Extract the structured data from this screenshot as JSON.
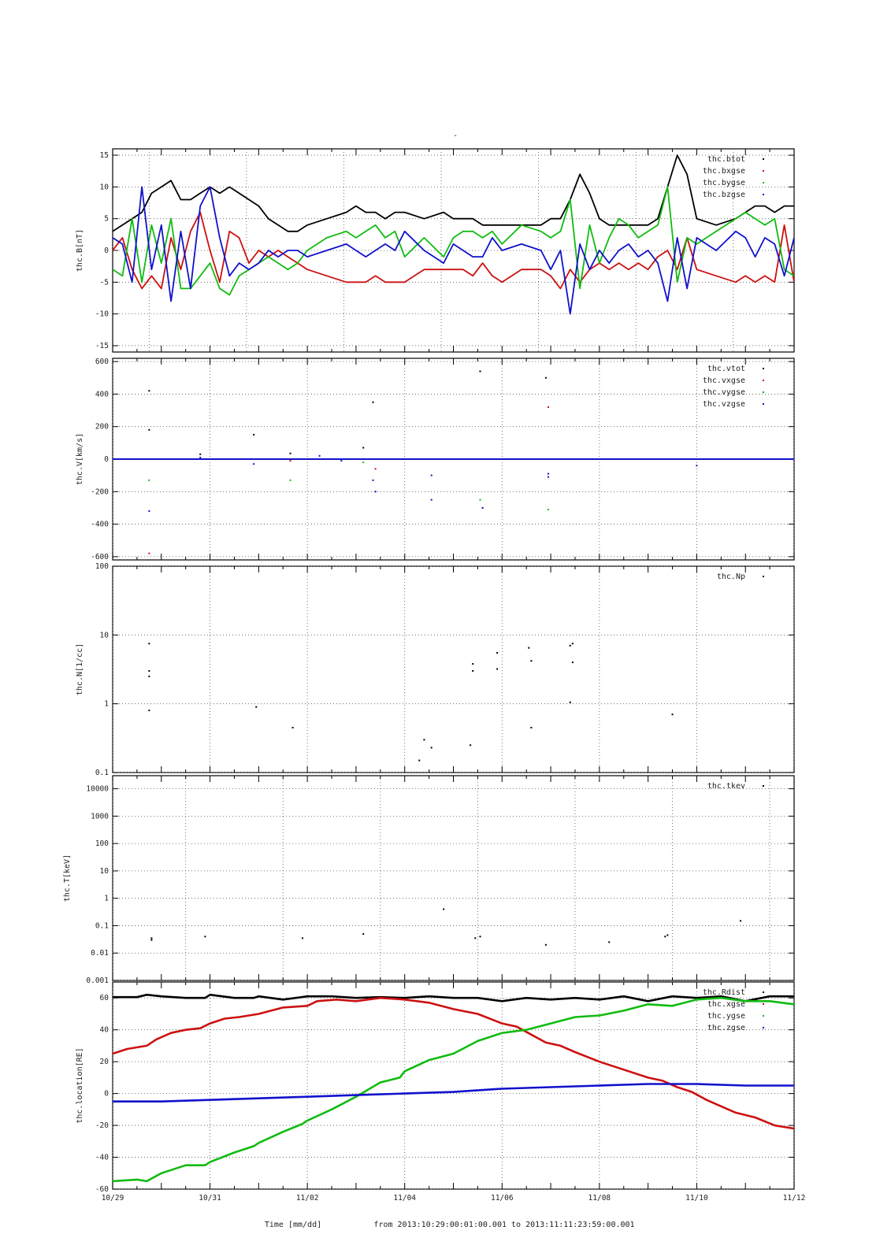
{
  "page": {
    "marker": "-",
    "xlabel": "Time [mm/dd]",
    "time_range_label": "from 2013:10:29:00:01:00.001  to  2013:11:11:23:59:00.001"
  },
  "chart_data": [
    {
      "id": "B",
      "type": "line",
      "ylabel": "thc.B[nT]",
      "ylim": [
        -16,
        16
      ],
      "yticks": [
        -15,
        -10,
        -5,
        0,
        5,
        10,
        15
      ],
      "yscale": "linear",
      "xlim": [
        0,
        14
      ],
      "xtick_labels": [
        "10/29",
        "10/31",
        "11/02",
        "11/04",
        "11/06",
        "11/08",
        "11/10",
        "11/12"
      ],
      "grid": true,
      "legend": "top-right",
      "series": [
        {
          "name": "thc.btot",
          "color": "#000000",
          "x": [
            0,
            0.2,
            0.4,
            0.6,
            0.8,
            1.0,
            1.2,
            1.4,
            1.6,
            1.8,
            2.0,
            2.2,
            2.4,
            2.6,
            2.8,
            3.0,
            3.2,
            3.4,
            3.6,
            3.8,
            4.0,
            4.4,
            4.8,
            5.0,
            5.2,
            5.4,
            5.6,
            5.8,
            6.0,
            6.4,
            6.8,
            7.0,
            7.2,
            7.4,
            7.6,
            7.8,
            8.0,
            8.4,
            8.8,
            9.0,
            9.2,
            9.4,
            9.6,
            9.8,
            10.0,
            10.2,
            10.4,
            10.6,
            10.8,
            11.0,
            11.2,
            11.4,
            11.6,
            11.8,
            12.0,
            12.4,
            12.8,
            13.0,
            13.2,
            13.4,
            13.6,
            13.8,
            14.0
          ],
          "y": [
            3,
            4,
            5,
            6,
            9,
            10,
            11,
            8,
            8,
            9,
            10,
            9,
            10,
            9,
            8,
            7,
            5,
            4,
            3,
            3,
            4,
            5,
            6,
            7,
            6,
            6,
            5,
            6,
            6,
            5,
            6,
            5,
            5,
            5,
            4,
            4,
            4,
            4,
            4,
            5,
            5,
            8,
            12,
            9,
            5,
            4,
            4,
            4,
            4,
            4,
            5,
            10,
            15,
            12,
            5,
            4,
            5,
            6,
            7,
            7,
            6,
            7,
            7
          ]
        },
        {
          "name": "thc.bxgse",
          "color": "#cc1111",
          "x": [
            0,
            0.2,
            0.4,
            0.6,
            0.8,
            1.0,
            1.2,
            1.4,
            1.6,
            1.8,
            2.0,
            2.2,
            2.4,
            2.6,
            2.8,
            3.0,
            3.2,
            3.4,
            3.6,
            3.8,
            4.0,
            4.4,
            4.8,
            5.0,
            5.2,
            5.4,
            5.6,
            5.8,
            6.0,
            6.4,
            6.8,
            7.0,
            7.2,
            7.4,
            7.6,
            7.8,
            8.0,
            8.4,
            8.8,
            9.0,
            9.2,
            9.4,
            9.6,
            9.8,
            10.0,
            10.2,
            10.4,
            10.6,
            10.8,
            11.0,
            11.2,
            11.4,
            11.6,
            11.8,
            12.0,
            12.4,
            12.8,
            13.0,
            13.2,
            13.4,
            13.6,
            13.8,
            14.0
          ],
          "y": [
            0,
            2,
            -3,
            -6,
            -4,
            -6,
            2,
            -3,
            3,
            6,
            0,
            -5,
            3,
            2,
            -2,
            0,
            -1,
            0,
            -1,
            -2,
            -3,
            -4,
            -5,
            -5,
            -5,
            -4,
            -5,
            -5,
            -5,
            -3,
            -3,
            -3,
            -3,
            -4,
            -2,
            -4,
            -5,
            -3,
            -3,
            -4,
            -6,
            -3,
            -5,
            -3,
            -2,
            -3,
            -2,
            -3,
            -2,
            -3,
            -1,
            0,
            -3,
            2,
            -3,
            -4,
            -5,
            -4,
            -5,
            -4,
            -5,
            4,
            -5
          ]
        },
        {
          "name": "thc.bygse",
          "color": "#11bb11",
          "x": [
            0,
            0.2,
            0.4,
            0.6,
            0.8,
            1.0,
            1.2,
            1.4,
            1.6,
            1.8,
            2.0,
            2.2,
            2.4,
            2.6,
            2.8,
            3.0,
            3.2,
            3.4,
            3.6,
            3.8,
            4.0,
            4.4,
            4.8,
            5.0,
            5.2,
            5.4,
            5.6,
            5.8,
            6.0,
            6.4,
            6.8,
            7.0,
            7.2,
            7.4,
            7.6,
            7.8,
            8.0,
            8.4,
            8.8,
            9.0,
            9.2,
            9.4,
            9.6,
            9.8,
            10.0,
            10.2,
            10.4,
            10.6,
            10.8,
            11.0,
            11.2,
            11.4,
            11.6,
            11.8,
            12.0,
            12.4,
            12.8,
            13.0,
            13.2,
            13.4,
            13.6,
            13.8,
            14.0
          ],
          "y": [
            -3,
            -4,
            5,
            -5,
            4,
            -2,
            5,
            -6,
            -6,
            -4,
            -2,
            -6,
            -7,
            -4,
            -3,
            -2,
            -1,
            -2,
            -3,
            -2,
            0,
            2,
            3,
            2,
            3,
            4,
            2,
            3,
            -1,
            2,
            -1,
            2,
            3,
            3,
            2,
            3,
            1,
            4,
            3,
            2,
            3,
            8,
            -6,
            4,
            -2,
            2,
            5,
            4,
            2,
            3,
            4,
            10,
            -5,
            2,
            1,
            3,
            5,
            6,
            5,
            4,
            5,
            -3,
            -4
          ]
        },
        {
          "name": "thc.bzgse",
          "color": "#1111cc",
          "x": [
            0,
            0.2,
            0.4,
            0.6,
            0.8,
            1.0,
            1.2,
            1.4,
            1.6,
            1.8,
            2.0,
            2.2,
            2.4,
            2.6,
            2.8,
            3.0,
            3.2,
            3.4,
            3.6,
            3.8,
            4.0,
            4.4,
            4.8,
            5.0,
            5.2,
            5.4,
            5.6,
            5.8,
            6.0,
            6.4,
            6.8,
            7.0,
            7.2,
            7.4,
            7.6,
            7.8,
            8.0,
            8.4,
            8.8,
            9.0,
            9.2,
            9.4,
            9.6,
            9.8,
            10.0,
            10.2,
            10.4,
            10.6,
            10.8,
            11.0,
            11.2,
            11.4,
            11.6,
            11.8,
            12.0,
            12.4,
            12.8,
            13.0,
            13.2,
            13.4,
            13.6,
            13.8,
            14.0
          ],
          "y": [
            2,
            1,
            -5,
            10,
            -3,
            4,
            -8,
            3,
            -6,
            7,
            10,
            2,
            -4,
            -2,
            -3,
            -2,
            0,
            -1,
            0,
            0,
            -1,
            0,
            1,
            0,
            -1,
            0,
            1,
            0,
            3,
            0,
            -2,
            1,
            0,
            -1,
            -1,
            2,
            0,
            1,
            0,
            -3,
            0,
            -10,
            1,
            -3,
            0,
            -2,
            0,
            1,
            -1,
            0,
            -2,
            -8,
            2,
            -6,
            2,
            0,
            3,
            2,
            -1,
            2,
            1,
            -4,
            2
          ]
        }
      ]
    },
    {
      "id": "V",
      "type": "scatter",
      "ylabel": "thc.V[km/s]",
      "ylim": [
        -620,
        620
      ],
      "yticks": [
        -600,
        -400,
        -200,
        0,
        200,
        400,
        600
      ],
      "yscale": "linear",
      "xlim": [
        0,
        14
      ],
      "grid": true,
      "legend": "top-right",
      "series": [
        {
          "name": "thc.vtot",
          "color": "#000000",
          "x": [
            0.75,
            0.75,
            1.8,
            2.9,
            3.65,
            5.15,
            5.35,
            7.55,
            8.9
          ],
          "y": [
            420,
            180,
            30,
            150,
            35,
            70,
            350,
            540,
            500
          ]
        },
        {
          "name": "thc.vxgse",
          "color": "#cc1111",
          "x": [
            0.75,
            3.65,
            5.4,
            7.6,
            8.95
          ],
          "y": [
            -580,
            -10,
            -60,
            -300,
            320
          ]
        },
        {
          "name": "thc.vygse",
          "color": "#11bb11",
          "x": [
            0.75,
            3.65,
            5.15,
            7.55,
            8.95
          ],
          "y": [
            -130,
            -130,
            -20,
            -250,
            -310
          ]
        },
        {
          "name": "thc.vzgse",
          "color": "#1111cc",
          "x": [
            0.75,
            1.8,
            2.9,
            4.25,
            4.7,
            5.4,
            5.35,
            6.55,
            6.55,
            7.6,
            8.95,
            8.95,
            12.0
          ],
          "y": [
            -320,
            10,
            -30,
            20,
            -10,
            -200,
            -130,
            -100,
            -250,
            -300,
            -110,
            -90,
            -40
          ]
        }
      ]
    },
    {
      "id": "N",
      "type": "scatter",
      "ylabel": "thc.N[1/cc]",
      "ylim": [
        0.1,
        100
      ],
      "ytick_labels": [
        "0.1",
        "1",
        "10",
        "100"
      ],
      "yscale": "log",
      "xlim": [
        0,
        14
      ],
      "grid": true,
      "legend": "top-right",
      "series": [
        {
          "name": "thc.Np",
          "color": "#000000",
          "x": [
            0.75,
            0.75,
            0.75,
            0.75,
            2.95,
            3.7,
            6.3,
            6.4,
            6.55,
            7.4,
            7.4,
            7.35,
            7.9,
            7.9,
            8.55,
            8.6,
            8.6,
            9.4,
            9.45,
            9.45,
            9.4,
            11.5
          ],
          "y": [
            7.5,
            3,
            2.5,
            0.8,
            0.9,
            0.45,
            0.15,
            0.3,
            0.23,
            3.8,
            3,
            0.25,
            5.5,
            3.2,
            6.5,
            4.2,
            0.45,
            7,
            4,
            7.5,
            1.05,
            0.7
          ]
        }
      ]
    },
    {
      "id": "T",
      "type": "scatter",
      "ylabel": "thc.T[keV]",
      "ylim": [
        0.001,
        30000
      ],
      "ytick_labels": [
        "0.001",
        "0.01",
        "0.1",
        "1",
        "10",
        "100",
        "1000",
        "10000"
      ],
      "yscale": "log",
      "xlim": [
        0,
        14
      ],
      "grid": true,
      "legend": "top-right",
      "series": [
        {
          "name": "thc.tkev",
          "color": "#000000",
          "x": [
            0.8,
            0.8,
            1.9,
            3.9,
            5.15,
            6.8,
            7.45,
            7.55,
            8.9,
            10.2,
            11.35,
            11.4,
            12.9
          ],
          "y": [
            0.035,
            0.03,
            0.04,
            0.035,
            0.05,
            0.4,
            0.035,
            0.04,
            0.02,
            0.025,
            0.04,
            0.045,
            0.15
          ]
        }
      ]
    },
    {
      "id": "location",
      "type": "line",
      "ylabel": "thc.location[RE]",
      "ylim": [
        -60,
        70
      ],
      "yticks": [
        -60,
        -40,
        -20,
        0,
        20,
        40,
        60
      ],
      "yscale": "linear",
      "xlim": [
        0,
        14
      ],
      "xtick_labels": [
        "10/29",
        "10/31",
        "11/02",
        "11/04",
        "11/06",
        "11/08",
        "11/10",
        "11/12"
      ],
      "grid": true,
      "legend": "top-right",
      "series": [
        {
          "name": "thc.Rdist",
          "color": "#000000",
          "x": [
            0,
            0.5,
            0.7,
            1.0,
            1.5,
            1.9,
            2.0,
            2.5,
            2.9,
            3.0,
            3.5,
            4.0,
            4.5,
            5.0,
            5.5,
            6.0,
            6.5,
            7.0,
            7.5,
            8.0,
            8.5,
            9.0,
            9.5,
            10.0,
            10.5,
            11.0,
            11.5,
            12.0,
            12.5,
            13.0,
            13.5,
            14.0
          ],
          "y": [
            60.5,
            60.5,
            62,
            61,
            60,
            60,
            62,
            60,
            60,
            61,
            59,
            61,
            61,
            60,
            60.5,
            60,
            61,
            60,
            60,
            58,
            60,
            59,
            60,
            59,
            61,
            58,
            61,
            60,
            61,
            58,
            61,
            61
          ]
        },
        {
          "name": "thc.xgse",
          "color": "#cc1111",
          "x": [
            0,
            0.3,
            0.7,
            0.9,
            1.2,
            1.5,
            1.8,
            2.0,
            2.3,
            2.6,
            3.0,
            3.5,
            4.0,
            4.2,
            4.6,
            5.0,
            5.5,
            6.0,
            6.5,
            7.0,
            7.5,
            8.0,
            8.3,
            8.6,
            8.9,
            9.2,
            9.5,
            10.0,
            10.5,
            11.0,
            11.3,
            11.6,
            11.9,
            12.2,
            12.5,
            12.8,
            13.2,
            13.6,
            14.0
          ],
          "y": [
            25,
            28,
            30,
            34,
            38,
            40,
            41,
            44,
            47,
            48,
            50,
            54,
            55,
            58,
            59,
            58,
            60,
            59,
            57,
            53,
            50,
            44,
            42,
            37,
            32,
            30,
            26,
            20,
            15,
            10,
            8,
            4,
            1,
            -4,
            -8,
            -12,
            -15,
            -20,
            -22
          ]
        },
        {
          "name": "thc.ygse",
          "color": "#11bb11",
          "x": [
            0,
            0.5,
            0.7,
            1.0,
            1.5,
            1.9,
            2.0,
            2.5,
            2.9,
            3.0,
            3.5,
            3.9,
            4.0,
            4.5,
            5.0,
            5.5,
            5.9,
            6.0,
            6.5,
            7.0,
            7.5,
            8.0,
            8.5,
            9.0,
            9.5,
            10.0,
            10.5,
            11.0,
            11.5,
            12.0,
            12.5,
            13.0,
            13.5,
            14.0
          ],
          "y": [
            -55,
            -54,
            -55,
            -50,
            -45,
            -45,
            -43,
            -37,
            -33,
            -31,
            -24,
            -19,
            -17,
            -10,
            -2,
            7,
            10,
            14,
            21,
            25,
            33,
            38,
            40,
            44,
            48,
            49,
            52,
            56,
            55,
            59,
            60,
            58,
            58,
            56
          ]
        },
        {
          "name": "thc.zgse",
          "color": "#1111cc",
          "x": [
            0,
            1,
            2,
            3,
            4,
            5,
            6,
            7,
            8,
            9,
            10,
            11,
            12,
            13,
            14
          ],
          "y": [
            -5,
            -5,
            -4,
            -3,
            -2,
            -1,
            0,
            1,
            3,
            4,
            5,
            6,
            6,
            5,
            5
          ]
        }
      ]
    }
  ]
}
